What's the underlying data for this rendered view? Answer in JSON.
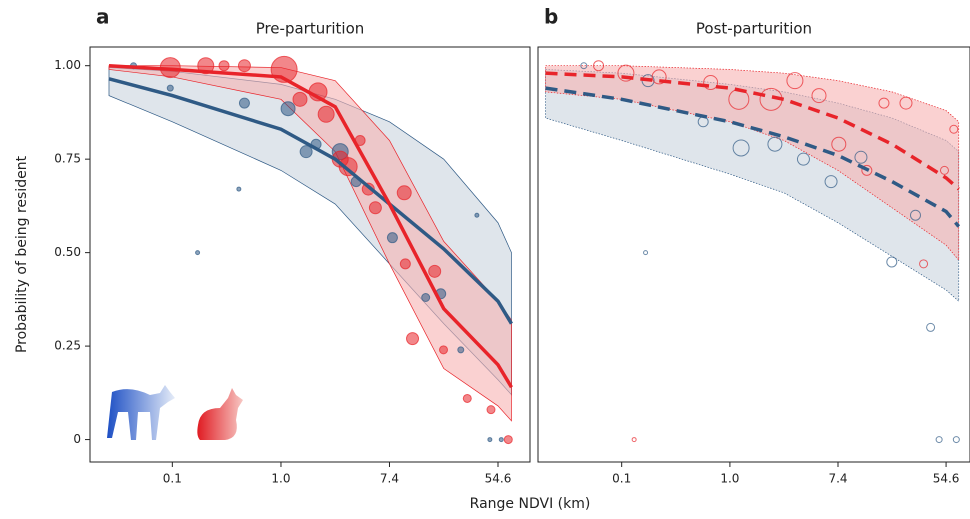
{
  "chart_data": [
    {
      "type": "line",
      "panel_label": "a",
      "title": "Pre-parturition",
      "xlabel": "Range NDVI (km)",
      "ylabel": "Probability of being resident",
      "log_x": true,
      "xlim": [
        0.0296,
        98.5
      ],
      "ylim": [
        -0.06,
        1.05
      ],
      "xticks": [
        {
          "value": 0.135,
          "label": "0.1"
        },
        {
          "value": 1,
          "label": "1.0"
        },
        {
          "value": 7.389,
          "label": "7.4"
        },
        {
          "value": 54.598,
          "label": "54.6"
        }
      ],
      "yticks": [
        0,
        0.25,
        {
          "value": 0.5,
          "label": "0.50"
        },
        0.75,
        {
          "value": 1,
          "label": "1.00"
        }
      ],
      "x": [
        0.042,
        0.135,
        1,
        2.718,
        7.389,
        20.09,
        54.6,
        70
      ],
      "series": [
        {
          "color": "#2f5a85",
          "band_color": "#c9d3de",
          "dashed": false,
          "filled_markers": true,
          "values": [
            0.965,
            0.92,
            0.83,
            0.75,
            0.63,
            0.51,
            0.37,
            0.31
          ],
          "upper": [
            0.995,
            0.985,
            0.95,
            0.91,
            0.85,
            0.75,
            0.58,
            0.5
          ],
          "lower": [
            0.92,
            0.85,
            0.72,
            0.63,
            0.47,
            0.31,
            0.16,
            0.12
          ],
          "points_x": [
            0.066,
            0.13,
            0.215,
            0.46,
            0.51,
            1.14,
            1.59,
            1.91,
            2.98,
            4.0,
            7.8,
            14.4,
            19,
            27.5,
            37,
            47,
            58
          ],
          "points_y": [
            1.0,
            0.94,
            0.5,
            0.67,
            0.9,
            0.885,
            0.77,
            0.79,
            0.77,
            0.69,
            0.54,
            0.38,
            0.39,
            0.24,
            0.6,
            0,
            0
          ],
          "points_size": [
            3,
            3,
            2,
            2,
            5,
            7,
            6,
            5,
            8,
            5,
            5,
            4,
            5,
            3,
            2,
            2,
            2
          ]
        },
        {
          "color": "#e8242a",
          "band_color": "#f6b3b3",
          "dashed": false,
          "filled_markers": true,
          "values": [
            1.0,
            0.99,
            0.97,
            0.89,
            0.63,
            0.35,
            0.2,
            0.14
          ],
          "upper": [
            1.0,
            1.0,
            0.995,
            0.96,
            0.8,
            0.53,
            0.37,
            0.32
          ],
          "lower": [
            0.99,
            0.97,
            0.91,
            0.77,
            0.47,
            0.19,
            0.09,
            0.05
          ],
          "points_x": [
            0.13,
            0.25,
            0.35,
            0.51,
            1.06,
            1.42,
            1.98,
            2.3,
            2.98,
            3.45,
            4.3,
            5.0,
            5.7,
            9.7,
            9.9,
            11.3,
            17,
            20,
            31,
            48,
            66
          ],
          "points_y": [
            0.995,
            1.0,
            1.0,
            1.0,
            0.99,
            0.91,
            0.93,
            0.87,
            0.75,
            0.73,
            0.8,
            0.67,
            0.62,
            0.66,
            0.47,
            0.27,
            0.45,
            0.24,
            0.11,
            0.08,
            0
          ],
          "points_size": [
            10,
            8,
            5,
            6,
            13,
            7,
            9,
            8,
            8,
            9,
            5,
            6,
            6,
            7,
            5,
            6,
            6,
            4,
            4,
            4,
            4
          ]
        }
      ]
    },
    {
      "type": "line",
      "panel_label": "b",
      "title": "Post-parturition",
      "log_x": true,
      "xlim": [
        0.0287,
        85
      ],
      "ylim": [
        -0.06,
        1.05
      ],
      "xticks": [
        {
          "value": 0.135,
          "label": "0.1"
        },
        {
          "value": 1,
          "label": "1.0"
        },
        {
          "value": 7.389,
          "label": "7.4"
        },
        {
          "value": 54.598,
          "label": "54.6"
        }
      ],
      "x": [
        0.033,
        0.135,
        1,
        2.718,
        7.389,
        20.09,
        54.6,
        69
      ],
      "series": [
        {
          "color": "#2f5a85",
          "band_color": "#c9d3de",
          "dashed": true,
          "filled_markers": false,
          "values": [
            0.94,
            0.91,
            0.85,
            0.81,
            0.76,
            0.69,
            0.61,
            0.57
          ],
          "upper": [
            0.99,
            0.98,
            0.95,
            0.93,
            0.9,
            0.86,
            0.8,
            0.77
          ],
          "lower": [
            0.86,
            0.8,
            0.71,
            0.66,
            0.58,
            0.49,
            0.4,
            0.37
          ],
          "points_x": [
            0.067,
            0.21,
            0.22,
            0.61,
            1.23,
            2.3,
            3.9,
            6.5,
            11.3,
            20,
            31,
            41,
            48,
            66
          ],
          "points_y": [
            1.0,
            0.5,
            0.96,
            0.85,
            0.78,
            0.79,
            0.75,
            0.69,
            0.755,
            0.475,
            0.6,
            0.3,
            0,
            0
          ],
          "points_size": [
            3,
            2,
            6,
            5,
            8,
            7,
            6,
            6,
            6,
            5,
            5,
            4,
            3,
            3
          ]
        },
        {
          "color": "#e8242a",
          "band_color": "#f6b3b3",
          "dashed": true,
          "filled_markers": false,
          "values": [
            0.98,
            0.97,
            0.94,
            0.91,
            0.86,
            0.79,
            0.7,
            0.67
          ],
          "upper": [
            1.0,
            1.0,
            0.99,
            0.98,
            0.96,
            0.93,
            0.88,
            0.85
          ],
          "lower": [
            0.93,
            0.91,
            0.85,
            0.8,
            0.72,
            0.62,
            0.52,
            0.48
          ],
          "points_x": [
            0.088,
            0.146,
            0.17,
            0.27,
            0.7,
            1.18,
            2.14,
            3.33,
            5.2,
            7.5,
            12.6,
            17.3,
            26,
            36,
            53,
            63
          ],
          "points_y": [
            1.0,
            0.98,
            0,
            0.97,
            0.955,
            0.91,
            0.91,
            0.96,
            0.92,
            0.79,
            0.72,
            0.9,
            0.9,
            0.47,
            0.72,
            0.83
          ],
          "points_size": [
            5,
            8,
            2,
            7,
            7,
            10,
            11,
            8,
            7,
            7,
            5,
            5,
            6,
            4,
            4,
            4
          ]
        }
      ]
    }
  ]
}
